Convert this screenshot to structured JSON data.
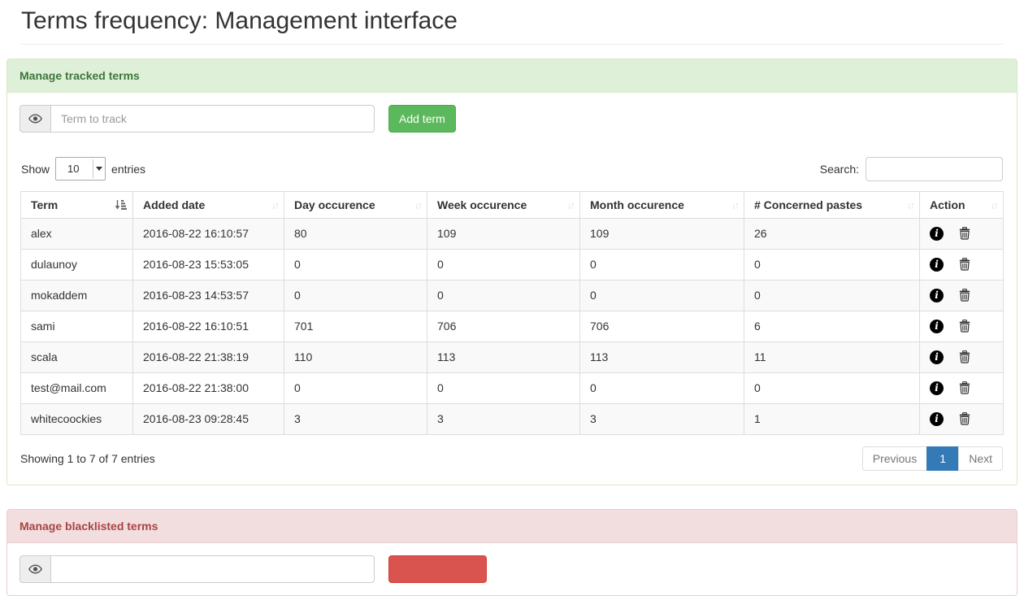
{
  "page": {
    "title": "Terms frequency: Management interface"
  },
  "tracked_panel": {
    "heading": "Manage tracked terms",
    "term_input_placeholder": "Term to track",
    "term_input_value": "",
    "add_button": "Add term",
    "table_controls": {
      "show_label": "Show",
      "page_length": "10",
      "entries_label": "entries",
      "search_label": "Search:",
      "search_value": ""
    },
    "table": {
      "columns": [
        "Term",
        "Added date",
        "Day occurence",
        "Week occurence",
        "Month occurence",
        "# Concerned pastes",
        "Action"
      ],
      "rows": [
        {
          "term": "alex",
          "added": "2016-08-22 16:10:57",
          "day": "80",
          "week": "109",
          "month": "109",
          "pastes": "26"
        },
        {
          "term": "dulaunoy",
          "added": "2016-08-23 15:53:05",
          "day": "0",
          "week": "0",
          "month": "0",
          "pastes": "0"
        },
        {
          "term": "mokaddem",
          "added": "2016-08-23 14:53:57",
          "day": "0",
          "week": "0",
          "month": "0",
          "pastes": "0"
        },
        {
          "term": "sami",
          "added": "2016-08-22 16:10:51",
          "day": "701",
          "week": "706",
          "month": "706",
          "pastes": "6"
        },
        {
          "term": "scala",
          "added": "2016-08-22 21:38:19",
          "day": "110",
          "week": "113",
          "month": "113",
          "pastes": "11"
        },
        {
          "term": "test@mail.com",
          "added": "2016-08-22 21:38:00",
          "day": "0",
          "week": "0",
          "month": "0",
          "pastes": "0"
        },
        {
          "term": "whitecoockies",
          "added": "2016-08-23 09:28:45",
          "day": "3",
          "week": "3",
          "month": "3",
          "pastes": "1"
        }
      ]
    },
    "footer": {
      "info": "Showing 1 to 7 of 7 entries",
      "pagination": {
        "previous": "Previous",
        "current": "1",
        "next": "Next"
      }
    }
  },
  "blacklist_panel": {
    "heading": "Manage blacklisted terms",
    "input_placeholder": "",
    "button_label": ""
  },
  "icons": {
    "input_addon": "eye-icon",
    "sorted_column": "sort-amount-asc-icon",
    "sortable_column": "sort-both-icon",
    "row_info": "info-circle-icon",
    "row_delete": "trash-icon",
    "page_length": "caret-down-icon"
  },
  "colors": {
    "success_heading_bg": "#dff0d8",
    "success_heading_text": "#3c763d",
    "success_border": "#d6e9c6",
    "add_button_bg": "#5cb85c",
    "danger_heading_bg": "#f2dede",
    "danger_heading_text": "#a94442",
    "danger_border": "#ebccd1",
    "danger_button_bg": "#d9534f",
    "active_page_bg": "#337ab7",
    "row_stripe_bg": "#f9f9f9",
    "table_border": "#dddddd"
  }
}
